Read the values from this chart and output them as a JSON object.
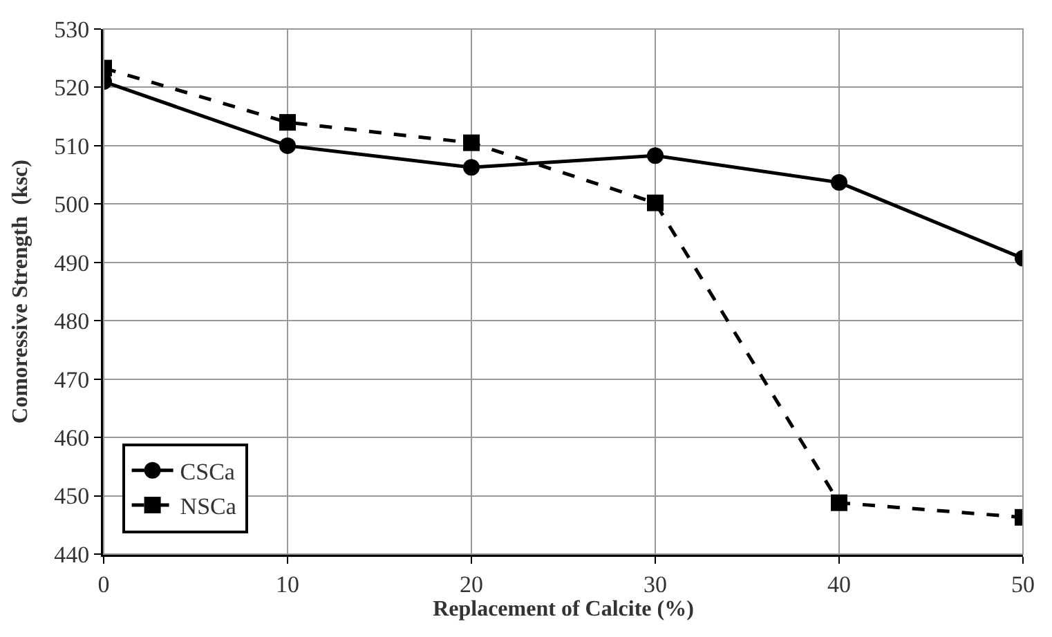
{
  "chart_data": {
    "type": "line",
    "xlabel": "Replacement of Calcite (%)",
    "ylabel": "Comoressive Strength  (ksc)",
    "x": [
      0,
      10,
      20,
      30,
      40,
      50
    ],
    "series": [
      {
        "name": "CSCa",
        "color": "#000000",
        "marker": "circle",
        "line_style": "solid",
        "values": [
          521,
          510,
          506.3,
          508.3,
          503.7,
          490.7
        ]
      },
      {
        "name": "NSCa",
        "color": "#000000",
        "marker": "square",
        "line_style": "dashed",
        "values": [
          523.3,
          514,
          510.5,
          500.2,
          448.8,
          446.3
        ]
      }
    ],
    "xlim": [
      0,
      50
    ],
    "xticks": [
      0,
      10,
      20,
      30,
      40,
      50
    ],
    "ylim": [
      440,
      530
    ],
    "yticks": [
      440,
      450,
      460,
      470,
      480,
      490,
      500,
      510,
      520,
      530
    ],
    "grid": true,
    "legend": "bottom left"
  }
}
